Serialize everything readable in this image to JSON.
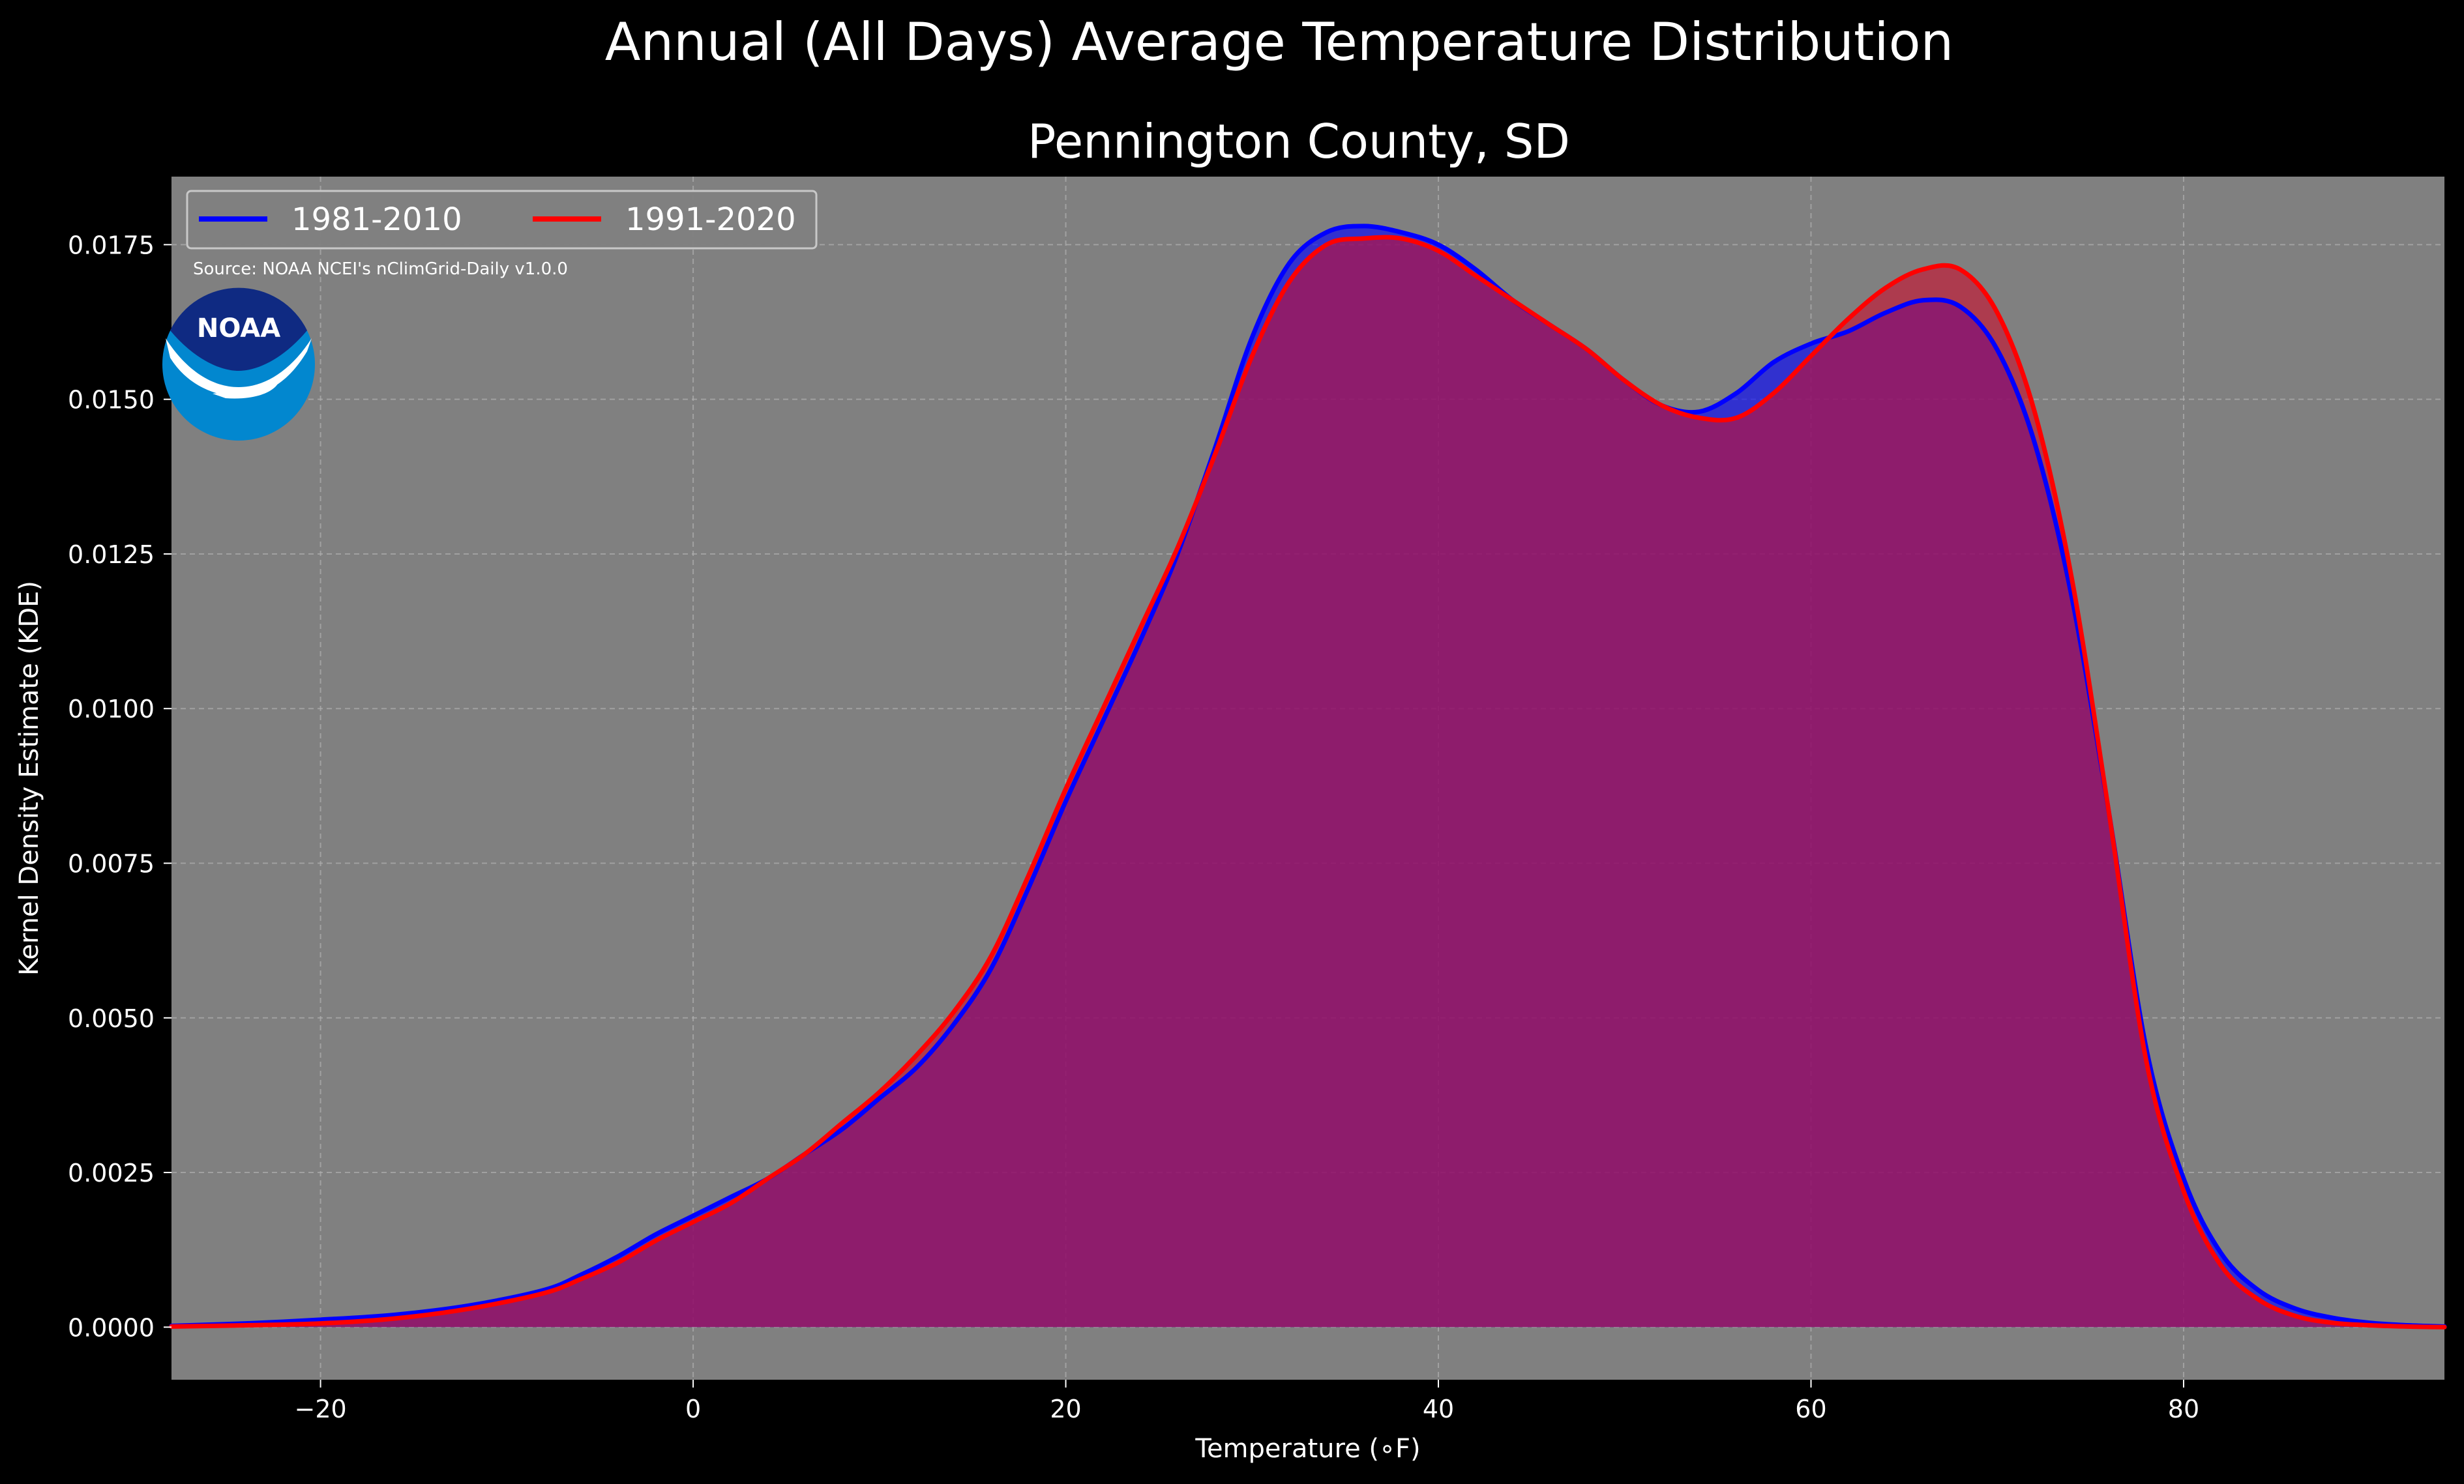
{
  "chart_data": {
    "type": "area",
    "suptitle": "Annual (All Days) Average Temperature Distribution",
    "title": "Pennington County, SD",
    "xlabel": "Temperature (∘F)",
    "ylabel": "Kernel Density Estimate (KDE)",
    "xlim": [
      -28,
      94
    ],
    "ylim": [
      -0.00085,
      0.0186
    ],
    "xticks": [
      {
        "value": -20,
        "label": "−20"
      },
      {
        "value": 0,
        "label": "0"
      },
      {
        "value": 20,
        "label": "20"
      },
      {
        "value": 40,
        "label": "40"
      },
      {
        "value": 60,
        "label": "60"
      },
      {
        "value": 80,
        "label": "80"
      }
    ],
    "yticks": [
      {
        "value": 0.0,
        "label": "0.0000"
      },
      {
        "value": 0.0025,
        "label": "0.0025"
      },
      {
        "value": 0.005,
        "label": "0.0050"
      },
      {
        "value": 0.0075,
        "label": "0.0075"
      },
      {
        "value": 0.01,
        "label": "0.0100"
      },
      {
        "value": 0.0125,
        "label": "0.0125"
      },
      {
        "value": 0.015,
        "label": "0.0150"
      },
      {
        "value": 0.0175,
        "label": "0.0175"
      }
    ],
    "grid": true,
    "legend_position": "top-left",
    "source_text": "Source: NOAA NCEI's nClimGrid-Daily v1.0.0",
    "logo_text": "NOAA",
    "colors": {
      "figure_background": "#000000",
      "axes_background": "#808080",
      "text": "#ffffff"
    },
    "series": [
      {
        "name": "1981-2010",
        "color": "#0000ff",
        "fill_color": "#0000ff",
        "x": [
          -28,
          -24,
          -20,
          -16,
          -12,
          -8,
          -6,
          -4,
          -2,
          0,
          2,
          4,
          6,
          8,
          10,
          12,
          14,
          16,
          18,
          20,
          22,
          24,
          26,
          28,
          30,
          32,
          34,
          36,
          38,
          40,
          42,
          44,
          46,
          48,
          50,
          52,
          54,
          56,
          58,
          60,
          62,
          64,
          66,
          68,
          70,
          72,
          74,
          76,
          78,
          80,
          82,
          84,
          86,
          88,
          90,
          92,
          94
        ],
        "values": [
          2e-05,
          6e-05,
          0.00012,
          0.0002,
          0.00035,
          0.0006,
          0.00085,
          0.00115,
          0.0015,
          0.0018,
          0.0021,
          0.0024,
          0.0028,
          0.0032,
          0.0037,
          0.0042,
          0.0049,
          0.0058,
          0.0071,
          0.0085,
          0.0098,
          0.0111,
          0.0125,
          0.0142,
          0.016,
          0.0172,
          0.0177,
          0.0178,
          0.0177,
          0.0175,
          0.0171,
          0.0166,
          0.0162,
          0.0158,
          0.0153,
          0.0149,
          0.0148,
          0.0151,
          0.0156,
          0.0159,
          0.0161,
          0.0164,
          0.0166,
          0.0165,
          0.0158,
          0.0143,
          0.0118,
          0.0083,
          0.0045,
          0.0024,
          0.0012,
          0.0006,
          0.0003,
          0.00015,
          7e-05,
          3e-05,
          1e-05
        ]
      },
      {
        "name": "1991-2020",
        "color": "#ff0000",
        "fill_color": "#c8102e",
        "x": [
          -28,
          -24,
          -20,
          -16,
          -12,
          -8,
          -6,
          -4,
          -2,
          0,
          2,
          4,
          6,
          8,
          10,
          12,
          14,
          16,
          18,
          20,
          22,
          24,
          26,
          28,
          30,
          32,
          34,
          36,
          38,
          40,
          42,
          44,
          46,
          48,
          50,
          52,
          54,
          56,
          58,
          60,
          62,
          64,
          66,
          68,
          70,
          72,
          74,
          76,
          78,
          80,
          82,
          84,
          86,
          88,
          90,
          92,
          94
        ],
        "values": [
          1e-05,
          3e-05,
          6e-05,
          0.00014,
          0.0003,
          0.00055,
          0.00078,
          0.00105,
          0.0014,
          0.0017,
          0.002,
          0.0024,
          0.0028,
          0.0033,
          0.0038,
          0.0044,
          0.0051,
          0.006,
          0.0073,
          0.0087,
          0.01,
          0.0113,
          0.0126,
          0.0141,
          0.0157,
          0.0169,
          0.0175,
          0.0176,
          0.0176,
          0.0174,
          0.017,
          0.0166,
          0.0162,
          0.0158,
          0.0153,
          0.0149,
          0.0147,
          0.0147,
          0.0151,
          0.0157,
          0.0163,
          0.0168,
          0.0171,
          0.0171,
          0.0164,
          0.0148,
          0.0121,
          0.0083,
          0.0043,
          0.0022,
          0.001,
          0.00045,
          0.00018,
          7e-05,
          3e-05,
          1e-05,
          0.0
        ]
      }
    ]
  }
}
